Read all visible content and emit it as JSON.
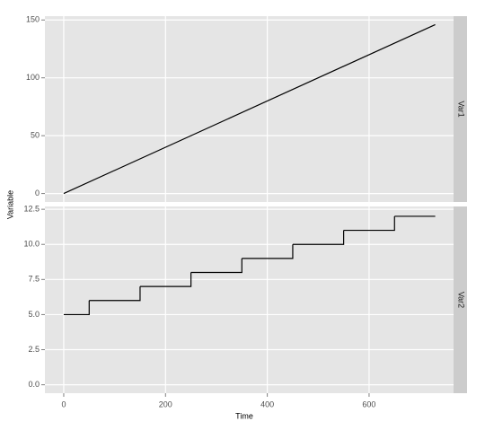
{
  "chart_data": {
    "type": "facet",
    "xlabel": "Time",
    "ylabel": "Variable",
    "xlim": [
      -37,
      766
    ],
    "xticks": [
      0,
      200,
      400,
      600
    ],
    "panels": [
      {
        "type": "line",
        "name": "Var1",
        "color": "#000000",
        "x": [
          0,
          730
        ],
        "values": [
          0,
          146
        ],
        "ylim": [
          -7.3,
          153.3
        ],
        "yticks": [
          0,
          50,
          100,
          150
        ]
      },
      {
        "type": "step",
        "name": "Var2",
        "color": "#000000",
        "x": [
          0,
          50,
          150,
          250,
          350,
          450,
          550,
          650,
          730
        ],
        "values": [
          5,
          6,
          7,
          8,
          9,
          10,
          11,
          12,
          12
        ],
        "ylim": [
          -0.6,
          12.7
        ],
        "yticks": [
          {
            "value": 0,
            "label": "0.0"
          },
          2.5,
          {
            "value": 5,
            "label": "5.0"
          },
          7.5,
          {
            "value": 10,
            "label": "10.0"
          },
          12.5
        ]
      }
    ]
  }
}
